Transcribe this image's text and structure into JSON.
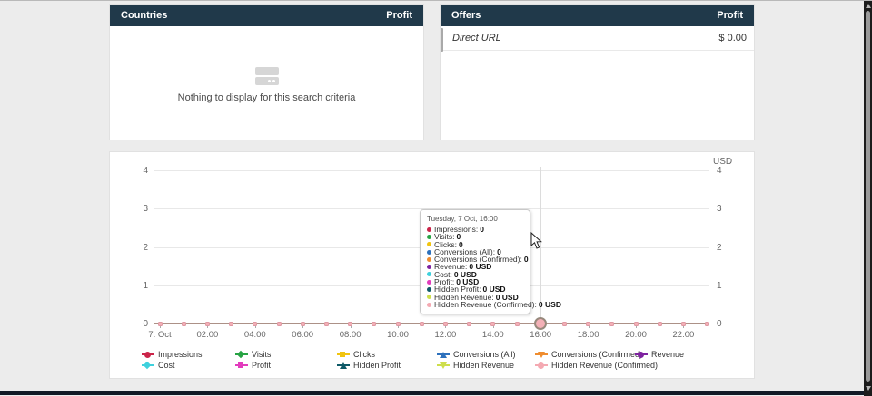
{
  "panels": {
    "countries": {
      "title": "Countries",
      "value_column": "Profit",
      "empty_message": "Nothing to display for this search criteria"
    },
    "offers": {
      "title": "Offers",
      "value_column": "Profit",
      "rows": [
        {
          "label": "Direct URL",
          "value": "$ 0.00"
        }
      ]
    }
  },
  "chart_data": {
    "type": "line",
    "title": "",
    "unit_label": "USD",
    "grid": true,
    "legend_position": "bottom",
    "ylim": [
      0,
      4
    ],
    "yticks": [
      0,
      1,
      2,
      3,
      4
    ],
    "x_hours": [
      "00:00",
      "01:00",
      "02:00",
      "03:00",
      "04:00",
      "05:00",
      "06:00",
      "07:00",
      "08:00",
      "09:00",
      "10:00",
      "11:00",
      "12:00",
      "13:00",
      "14:00",
      "15:00",
      "16:00",
      "17:00",
      "18:00",
      "19:00",
      "20:00",
      "21:00",
      "22:00",
      "23:00"
    ],
    "x_tick_labels": [
      {
        "i": 0,
        "label": "7. Oct"
      },
      {
        "i": 2,
        "label": "02:00"
      },
      {
        "i": 4,
        "label": "04:00"
      },
      {
        "i": 6,
        "label": "06:00"
      },
      {
        "i": 8,
        "label": "08:00"
      },
      {
        "i": 10,
        "label": "10:00"
      },
      {
        "i": 12,
        "label": "12:00"
      },
      {
        "i": 14,
        "label": "14:00"
      },
      {
        "i": 16,
        "label": "16:00"
      },
      {
        "i": 18,
        "label": "18:00"
      },
      {
        "i": 20,
        "label": "20:00"
      },
      {
        "i": 22,
        "label": "22:00"
      }
    ],
    "hover_index": 16,
    "series": [
      {
        "name": "Impressions",
        "color": "#cb2449",
        "marker": "circle",
        "values": [
          0,
          0,
          0,
          0,
          0,
          0,
          0,
          0,
          0,
          0,
          0,
          0,
          0,
          0,
          0,
          0,
          0,
          0,
          0,
          0,
          0,
          0,
          0,
          0
        ]
      },
      {
        "name": "Visits",
        "color": "#27a344",
        "marker": "diamond",
        "values": [
          0,
          0,
          0,
          0,
          0,
          0,
          0,
          0,
          0,
          0,
          0,
          0,
          0,
          0,
          0,
          0,
          0,
          0,
          0,
          0,
          0,
          0,
          0,
          0
        ]
      },
      {
        "name": "Clicks",
        "color": "#f1c40f",
        "marker": "square",
        "values": [
          0,
          0,
          0,
          0,
          0,
          0,
          0,
          0,
          0,
          0,
          0,
          0,
          0,
          0,
          0,
          0,
          0,
          0,
          0,
          0,
          0,
          0,
          0,
          0
        ]
      },
      {
        "name": "Conversions (All)",
        "color": "#2d71bd",
        "marker": "triangle",
        "values": [
          0,
          0,
          0,
          0,
          0,
          0,
          0,
          0,
          0,
          0,
          0,
          0,
          0,
          0,
          0,
          0,
          0,
          0,
          0,
          0,
          0,
          0,
          0,
          0
        ]
      },
      {
        "name": "Conversions (Confirmed)",
        "color": "#ef8d2f",
        "marker": "triangle-down",
        "values": [
          0,
          0,
          0,
          0,
          0,
          0,
          0,
          0,
          0,
          0,
          0,
          0,
          0,
          0,
          0,
          0,
          0,
          0,
          0,
          0,
          0,
          0,
          0,
          0
        ]
      },
      {
        "name": "Revenue",
        "color": "#7e22a0",
        "marker": "circle",
        "values": [
          0,
          0,
          0,
          0,
          0,
          0,
          0,
          0,
          0,
          0,
          0,
          0,
          0,
          0,
          0,
          0,
          0,
          0,
          0,
          0,
          0,
          0,
          0,
          0
        ]
      },
      {
        "name": "Cost",
        "color": "#3ed1dd",
        "marker": "diamond",
        "values": [
          0,
          0,
          0,
          0,
          0,
          0,
          0,
          0,
          0,
          0,
          0,
          0,
          0,
          0,
          0,
          0,
          0,
          0,
          0,
          0,
          0,
          0,
          0,
          0
        ]
      },
      {
        "name": "Profit",
        "color": "#e23cbd",
        "marker": "square",
        "values": [
          0,
          0,
          0,
          0,
          0,
          0,
          0,
          0,
          0,
          0,
          0,
          0,
          0,
          0,
          0,
          0,
          0,
          0,
          0,
          0,
          0,
          0,
          0,
          0
        ]
      },
      {
        "name": "Hidden Profit",
        "color": "#0e5a68",
        "marker": "triangle",
        "values": [
          0,
          0,
          0,
          0,
          0,
          0,
          0,
          0,
          0,
          0,
          0,
          0,
          0,
          0,
          0,
          0,
          0,
          0,
          0,
          0,
          0,
          0,
          0,
          0
        ]
      },
      {
        "name": "Hidden Revenue",
        "color": "#cede4c",
        "marker": "triangle-down",
        "values": [
          0,
          0,
          0,
          0,
          0,
          0,
          0,
          0,
          0,
          0,
          0,
          0,
          0,
          0,
          0,
          0,
          0,
          0,
          0,
          0,
          0,
          0,
          0,
          0
        ]
      },
      {
        "name": "Hidden Revenue (Confirmed)",
        "color": "#f4a9b2",
        "marker": "circle",
        "values": [
          0,
          0,
          0,
          0,
          0,
          0,
          0,
          0,
          0,
          0,
          0,
          0,
          0,
          0,
          0,
          0,
          0,
          0,
          0,
          0,
          0,
          0,
          0,
          0
        ]
      }
    ]
  },
  "tooltip": {
    "title": "Tuesday, 7 Oct, 16:00",
    "items": [
      {
        "label": "Impressions",
        "value": "0"
      },
      {
        "label": "Visits",
        "value": "0"
      },
      {
        "label": "Clicks",
        "value": "0"
      },
      {
        "label": "Conversions (All)",
        "value": "0"
      },
      {
        "label": "Conversions (Confirmed)",
        "value": "0"
      },
      {
        "label": "Revenue",
        "value": "0 USD"
      },
      {
        "label": "Cost",
        "value": "0 USD"
      },
      {
        "label": "Profit",
        "value": "0 USD"
      },
      {
        "label": "Hidden Profit",
        "value": "0 USD"
      },
      {
        "label": "Hidden Revenue",
        "value": "0 USD"
      },
      {
        "label": "Hidden Revenue (Confirmed)",
        "value": "0 USD"
      }
    ]
  },
  "colors": {
    "panel_header_bg": "#20394a",
    "series_baseline": "#ac9187",
    "marker_fill": "#f3b0b6",
    "page_bg": "#ececec"
  }
}
